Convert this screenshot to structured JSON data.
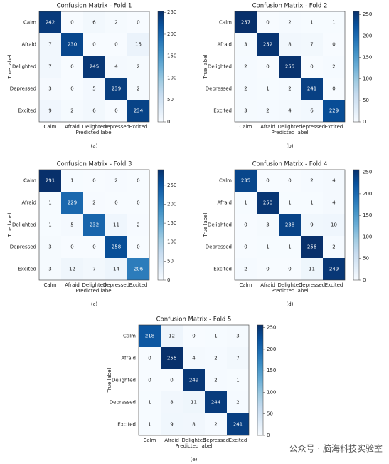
{
  "chart_data": [
    {
      "type": "heatmap",
      "title": "Confusion Matrix - Fold 1",
      "xlabel": "Predicted label",
      "ylabel": "True label",
      "caption": "(a)",
      "x_categories": [
        "Calm",
        "Afraid",
        "Delighted",
        "Depressed",
        "Excited"
      ],
      "y_categories": [
        "Calm",
        "Afraid",
        "Delighted",
        "Depressed",
        "Excited"
      ],
      "values": [
        [
          242,
          0,
          6,
          2,
          0
        ],
        [
          7,
          230,
          0,
          0,
          15
        ],
        [
          7,
          0,
          245,
          4,
          2
        ],
        [
          3,
          0,
          5,
          239,
          2
        ],
        [
          9,
          2,
          6,
          0,
          234
        ]
      ],
      "colormap": "Blues",
      "zlim": [
        0,
        252
      ],
      "zticks": [
        0,
        50,
        100,
        150,
        200,
        250
      ]
    },
    {
      "type": "heatmap",
      "title": "Confusion Matrix - Fold 2",
      "xlabel": "Predicted label",
      "ylabel": "True label",
      "caption": "(b)",
      "x_categories": [
        "Calm",
        "Afraid",
        "Delighted",
        "Depressed",
        "Excited"
      ],
      "y_categories": [
        "Calm",
        "Afraid",
        "Delighted",
        "Depressed",
        "Excited"
      ],
      "values": [
        [
          257,
          0,
          2,
          1,
          1
        ],
        [
          3,
          252,
          8,
          7,
          0
        ],
        [
          2,
          0,
          255,
          0,
          2
        ],
        [
          2,
          1,
          2,
          241,
          0
        ],
        [
          3,
          2,
          4,
          6,
          229
        ]
      ],
      "colormap": "Blues",
      "zlim": [
        0,
        257
      ],
      "zticks": [
        0,
        50,
        100,
        150,
        200,
        250
      ]
    },
    {
      "type": "heatmap",
      "title": "Confusion Matrix - Fold 3",
      "xlabel": "Predicted label",
      "ylabel": "True label",
      "caption": "(c)",
      "x_categories": [
        "Calm",
        "Afraid",
        "Delighted",
        "Depressed",
        "Excited"
      ],
      "y_categories": [
        "Calm",
        "Afraid",
        "Delighted",
        "Depressed",
        "Excited"
      ],
      "values": [
        [
          291,
          1,
          0,
          2,
          0
        ],
        [
          1,
          229,
          2,
          0,
          0
        ],
        [
          1,
          5,
          232,
          11,
          2
        ],
        [
          3,
          0,
          0,
          258,
          0
        ],
        [
          3,
          12,
          7,
          14,
          206
        ]
      ],
      "colormap": "Blues",
      "zlim": [
        0,
        291
      ],
      "zticks": [
        0,
        50,
        100,
        150,
        200,
        250
      ]
    },
    {
      "type": "heatmap",
      "title": "Confusion Matrix - Fold 4",
      "xlabel": "Predicted label",
      "ylabel": "True label",
      "caption": "(d)",
      "x_categories": [
        "Calm",
        "Afraid",
        "Delighted",
        "Depressed",
        "Excited"
      ],
      "y_categories": [
        "Calm",
        "Afraid",
        "Delighted",
        "Depressed",
        "Excited"
      ],
      "values": [
        [
          235,
          0,
          0,
          2,
          4
        ],
        [
          1,
          250,
          1,
          1,
          4
        ],
        [
          0,
          3,
          238,
          9,
          10
        ],
        [
          0,
          1,
          1,
          256,
          2
        ],
        [
          2,
          0,
          0,
          11,
          249
        ]
      ],
      "colormap": "Blues",
      "zlim": [
        0,
        256
      ],
      "zticks": [
        0,
        50,
        100,
        150,
        200,
        250
      ]
    },
    {
      "type": "heatmap",
      "title": "Confusion Matrix - Fold 5",
      "xlabel": "Predicted label",
      "ylabel": "True label",
      "caption": "(e)",
      "x_categories": [
        "Calm",
        "Afraid",
        "Delighted",
        "Depressed",
        "Excited"
      ],
      "y_categories": [
        "Calm",
        "Afraid",
        "Delighted",
        "Depressed",
        "Excited"
      ],
      "values": [
        [
          218,
          12,
          0,
          1,
          3
        ],
        [
          0,
          256,
          4,
          2,
          7
        ],
        [
          0,
          0,
          249,
          2,
          1
        ],
        [
          1,
          8,
          11,
          244,
          2
        ],
        [
          1,
          9,
          8,
          2,
          241
        ]
      ],
      "colormap": "Blues",
      "zlim": [
        0,
        256
      ],
      "zticks": [
        0,
        50,
        100,
        150,
        200,
        250
      ]
    }
  ],
  "watermark": "公众号 · 脑海科技实验室"
}
